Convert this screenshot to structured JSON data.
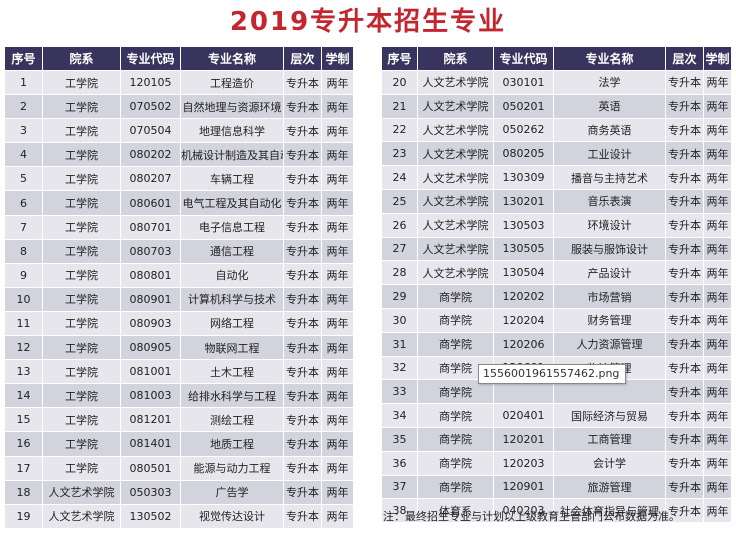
{
  "title": "2019专升本招生专业",
  "headers": [
    "序号",
    "院系",
    "专业代码",
    "专业名称",
    "层次",
    "学制"
  ],
  "left_rows": [
    [
      "1",
      "工学院",
      "120105",
      "工程造价",
      "专升本",
      "两年"
    ],
    [
      "2",
      "工学院",
      "070502",
      "自然地理与资源环境",
      "专升本",
      "两年"
    ],
    [
      "3",
      "工学院",
      "070504",
      "地理信息科学",
      "专升本",
      "两年"
    ],
    [
      "4",
      "工学院",
      "080202",
      "机械设计制造及其自动化",
      "专升本",
      "两年"
    ],
    [
      "5",
      "工学院",
      "080207",
      "车辆工程",
      "专升本",
      "两年"
    ],
    [
      "6",
      "工学院",
      "080601",
      "电气工程及其自动化",
      "专升本",
      "两年"
    ],
    [
      "7",
      "工学院",
      "080701",
      "电子信息工程",
      "专升本",
      "两年"
    ],
    [
      "8",
      "工学院",
      "080703",
      "通信工程",
      "专升本",
      "两年"
    ],
    [
      "9",
      "工学院",
      "080801",
      "自动化",
      "专升本",
      "两年"
    ],
    [
      "10",
      "工学院",
      "080901",
      "计算机科学与技术",
      "专升本",
      "两年"
    ],
    [
      "11",
      "工学院",
      "080903",
      "网络工程",
      "专升本",
      "两年"
    ],
    [
      "12",
      "工学院",
      "080905",
      "物联网工程",
      "专升本",
      "两年"
    ],
    [
      "13",
      "工学院",
      "081001",
      "土木工程",
      "专升本",
      "两年"
    ],
    [
      "14",
      "工学院",
      "081003",
      "给排水科学与工程",
      "专升本",
      "两年"
    ],
    [
      "15",
      "工学院",
      "081201",
      "测绘工程",
      "专升本",
      "两年"
    ],
    [
      "16",
      "工学院",
      "081401",
      "地质工程",
      "专升本",
      "两年"
    ],
    [
      "17",
      "工学院",
      "080501",
      "能源与动力工程",
      "专升本",
      "两年"
    ],
    [
      "18",
      "人文艺术学院",
      "050303",
      "广告学",
      "专升本",
      "两年"
    ],
    [
      "19",
      "人文艺术学院",
      "130502",
      "视觉传达设计",
      "专升本",
      "两年"
    ]
  ],
  "right_rows": [
    [
      "20",
      "人文艺术学院",
      "030101",
      "法学",
      "专升本",
      "两年"
    ],
    [
      "21",
      "人文艺术学院",
      "050201",
      "英语",
      "专升本",
      "两年"
    ],
    [
      "22",
      "人文艺术学院",
      "050262",
      "商务英语",
      "专升本",
      "两年"
    ],
    [
      "23",
      "人文艺术学院",
      "080205",
      "工业设计",
      "专升本",
      "两年"
    ],
    [
      "24",
      "人文艺术学院",
      "130309",
      "播音与主持艺术",
      "专升本",
      "两年"
    ],
    [
      "25",
      "人文艺术学院",
      "130201",
      "音乐表演",
      "专升本",
      "两年"
    ],
    [
      "26",
      "人文艺术学院",
      "130503",
      "环境设计",
      "专升本",
      "两年"
    ],
    [
      "27",
      "人文艺术学院",
      "130505",
      "服装与服饰设计",
      "专升本",
      "两年"
    ],
    [
      "28",
      "人文艺术学院",
      "130504",
      "产品设计",
      "专升本",
      "两年"
    ],
    [
      "29",
      "商学院",
      "120202",
      "市场营销",
      "专升本",
      "两年"
    ],
    [
      "30",
      "商学院",
      "120204",
      "财务管理",
      "专升本",
      "两年"
    ],
    [
      "31",
      "商学院",
      "120206",
      "人力资源管理",
      "专升本",
      "两年"
    ],
    [
      "32",
      "商学院",
      "120601",
      "物流管理",
      "专升本",
      "两年"
    ],
    [
      "33",
      "商学院",
      "",
      "",
      "专升本",
      "两年"
    ],
    [
      "34",
      "商学院",
      "020401",
      "国际经济与贸易",
      "专升本",
      "两年"
    ],
    [
      "35",
      "商学院",
      "120201",
      "工商管理",
      "专升本",
      "两年"
    ],
    [
      "36",
      "商学院",
      "120203",
      "会计学",
      "专升本",
      "两年"
    ],
    [
      "37",
      "商学院",
      "120901",
      "旅游管理",
      "专升本",
      "两年"
    ],
    [
      "38",
      "体育系",
      "040203",
      "社会体育指导与管理",
      "专升本",
      "两年"
    ]
  ],
  "note": "注：最终招生专业与计划以上级教育主管部门公布数据为准。",
  "file_label": "1556001961557462.png"
}
